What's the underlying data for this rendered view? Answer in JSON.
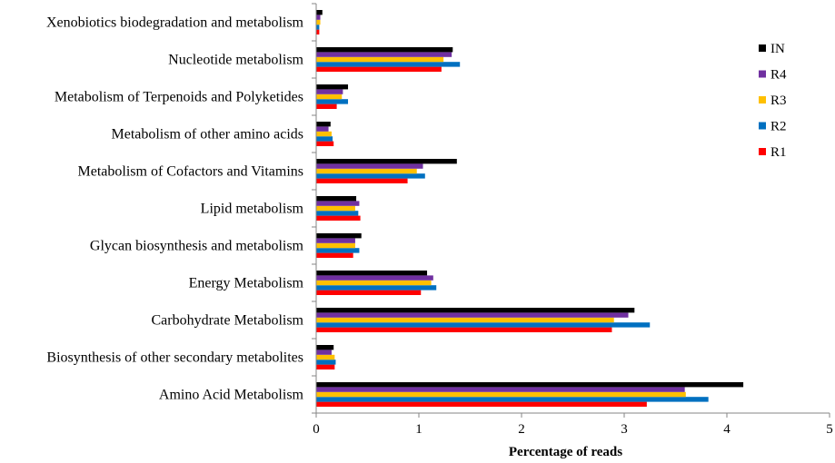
{
  "chart_data": {
    "type": "bar",
    "orientation": "horizontal",
    "xlabel": "Percentage of reads",
    "xlim": [
      0,
      5
    ],
    "xticks": [
      "0",
      "1",
      "2",
      "3",
      "4",
      "5"
    ],
    "grid": false,
    "legend_position": "right",
    "categories": [
      "Amino Acid Metabolism",
      "Biosynthesis of other secondary metabolites",
      "Carbohydrate Metabolism",
      "Energy Metabolism",
      "Glycan biosynthesis and metabolism",
      "Lipid metabolism",
      "Metabolism of Cofactors and Vitamins",
      "Metabolism of other amino acids",
      "Metabolism of Terpenoids and Polyketides",
      "Nucleotide metabolism",
      "Xenobiotics biodegradation and metabolism"
    ],
    "series": [
      {
        "name": "R1",
        "color": "#ff0000",
        "values": [
          3.22,
          0.18,
          2.88,
          1.02,
          0.36,
          0.43,
          0.89,
          0.17,
          0.2,
          1.22,
          0.03
        ]
      },
      {
        "name": "R2",
        "color": "#0070c0",
        "values": [
          3.82,
          0.19,
          3.25,
          1.17,
          0.42,
          0.41,
          1.06,
          0.16,
          0.31,
          1.4,
          0.03
        ]
      },
      {
        "name": "R3",
        "color": "#ffc000",
        "values": [
          3.6,
          0.18,
          2.9,
          1.12,
          0.38,
          0.38,
          0.98,
          0.15,
          0.25,
          1.24,
          0.04
        ]
      },
      {
        "name": "R4",
        "color": "#7030a0",
        "values": [
          3.59,
          0.15,
          3.04,
          1.14,
          0.38,
          0.42,
          1.04,
          0.12,
          0.26,
          1.32,
          0.04
        ]
      },
      {
        "name": "IN",
        "color": "#000000",
        "values": [
          4.16,
          0.17,
          3.1,
          1.08,
          0.44,
          0.39,
          1.37,
          0.14,
          0.31,
          1.33,
          0.06
        ]
      }
    ]
  }
}
